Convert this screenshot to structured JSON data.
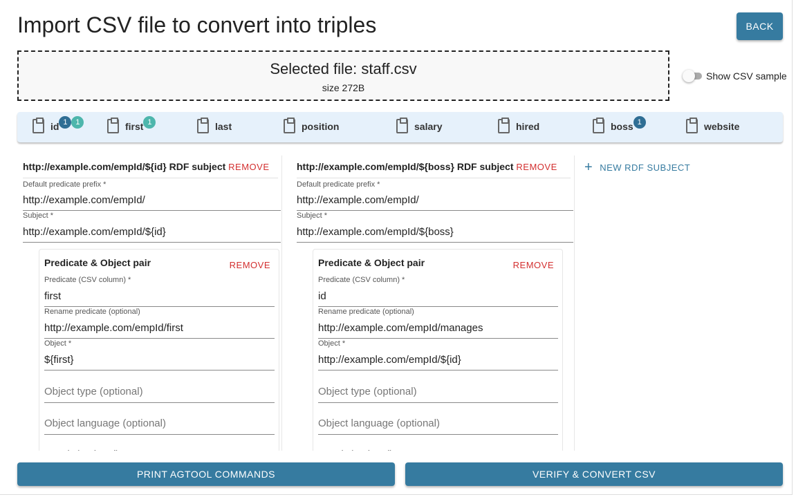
{
  "title": "Import CSV file to convert into triples",
  "back_label": "BACK",
  "file": {
    "selected": "Selected file: staff.csv",
    "size": "size 272B"
  },
  "toggle": {
    "label": "Show CSV sample",
    "on": false
  },
  "columns": [
    {
      "name": "id",
      "badges": [
        "1",
        "1"
      ]
    },
    {
      "name": "first",
      "badges": [
        "1"
      ]
    },
    {
      "name": "last",
      "badges": []
    },
    {
      "name": "position",
      "badges": []
    },
    {
      "name": "salary",
      "badges": []
    },
    {
      "name": "hired",
      "badges": []
    },
    {
      "name": "boss",
      "badges": [
        "1"
      ]
    },
    {
      "name": "website",
      "badges": []
    }
  ],
  "badge_colors": {
    "subject": "#2f6e94",
    "predicate": "#4db6ac"
  },
  "subjects": [
    {
      "heading": "http://example.com/empId/${id} RDF subject",
      "remove": "REMOVE",
      "prefix_label": "Default predicate prefix *",
      "prefix": "http://example.com/empId/",
      "subject_label": "Subject *",
      "subject": "http://example.com/empId/${id}",
      "pair": {
        "title": "Predicate & Object pair",
        "remove": "REMOVE",
        "predicate_label": "Predicate (CSV column) *",
        "predicate": "first",
        "rename_label": "Rename predicate (optional)",
        "rename": "http://example.com/empId/first",
        "object_label": "Object *",
        "object": "${first}",
        "object_type_placeholder": "Object type (optional)",
        "object_lang_placeholder": "Object language (optional)",
        "graph_placeholder": "Graph (optional)"
      }
    },
    {
      "heading": "http://example.com/empId/${boss} RDF subject",
      "remove": "REMOVE",
      "prefix_label": "Default predicate prefix *",
      "prefix": "http://example.com/empId/",
      "subject_label": "Subject *",
      "subject": "http://example.com/empId/${boss}",
      "pair": {
        "title": "Predicate & Object pair",
        "remove": "REMOVE",
        "predicate_label": "Predicate (CSV column) *",
        "predicate": "id",
        "rename_label": "Rename predicate (optional)",
        "rename": "http://example.com/empId/manages",
        "object_label": "Object *",
        "object": "http://example.com/empId/${id}",
        "object_type_placeholder": "Object type (optional)",
        "object_lang_placeholder": "Object language (optional)",
        "graph_placeholder": "Graph (optional)"
      }
    }
  ],
  "new_subject_label": "NEW RDF SUBJECT",
  "actions": {
    "print": "PRINT AGTOOL COMMANDS",
    "verify": "VERIFY & CONVERT CSV"
  }
}
